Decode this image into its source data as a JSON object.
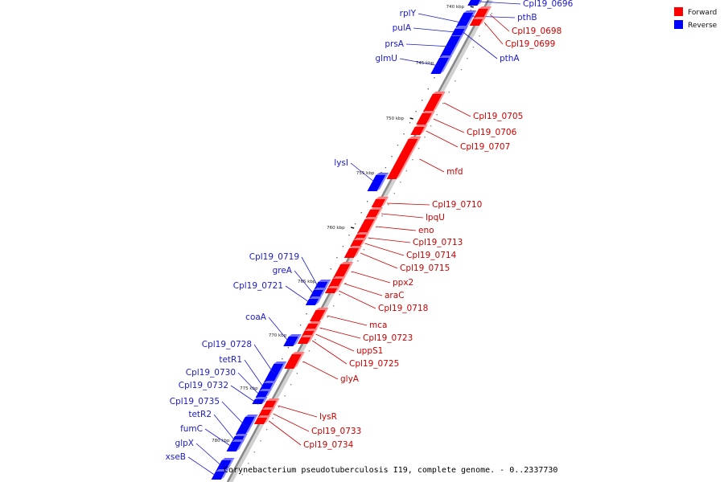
{
  "legend": [
    {
      "label": "Forward",
      "color": "#ff0000"
    },
    {
      "label": "Reverse",
      "color": "#0000ff"
    }
  ],
  "caption": "Corynebacterium pseudotuberculosis I19, complete genome. - 0..2337730",
  "ticks": [
    "740 kbp",
    "745 kbp",
    "750 kbp",
    "755 kbp",
    "760 kbp",
    "765 kbp",
    "770 kbp",
    "775 kbp",
    "780 kbp"
  ],
  "genes": {
    "reverse": [
      "rplY",
      "pulA",
      "prsA",
      "glmU",
      "lysI",
      "Cpl19_0719",
      "greA",
      "Cpl19_0721",
      "coaA",
      "Cpl19_0728",
      "tetR1",
      "Cpl19_0730",
      "Cpl19_0732",
      "Cpl19_0735",
      "tetR2",
      "fumC",
      "glpX",
      "xseB",
      "Cpl19_0696",
      "pthB",
      "pthA"
    ],
    "forward": [
      "Cpl19_0698",
      "Cpl19_0699",
      "Cpl19_0705",
      "Cpl19_0706",
      "Cpl19_0707",
      "mfd",
      "Cpl19_0710",
      "lpqU",
      "eno",
      "Cpl19_0713",
      "Cpl19_0714",
      "Cpl19_0715",
      "ppx2",
      "araC",
      "Cpl19_0718",
      "mca",
      "Cpl19_0723",
      "uppS1",
      "Cpl19_0725",
      "glyA",
      "lysR",
      "Cpl19_0733",
      "Cpl19_0734"
    ]
  }
}
